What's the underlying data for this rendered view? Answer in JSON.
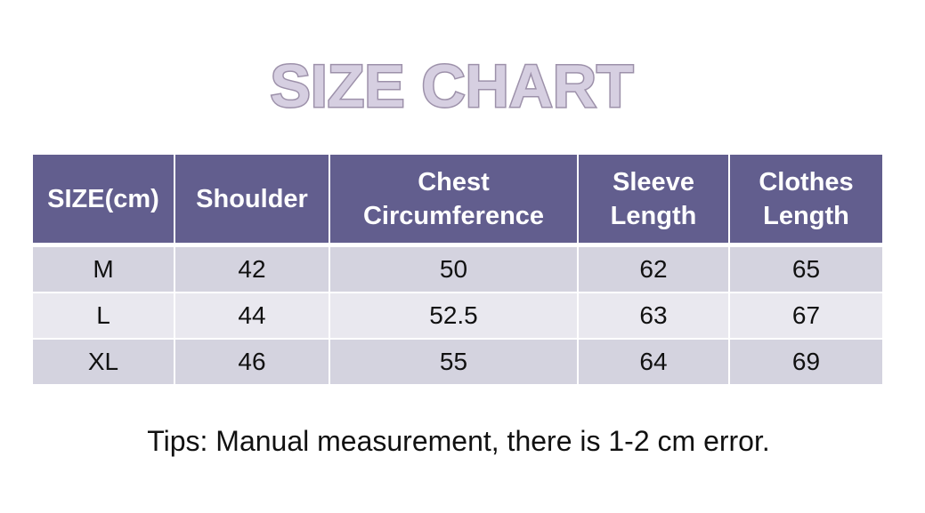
{
  "title": "SIZE CHART",
  "table": {
    "headers": [
      [
        "SIZE(cm)"
      ],
      [
        "Shoulder"
      ],
      [
        "Chest",
        "Circumference"
      ],
      [
        "Sleeve",
        "Length"
      ],
      [
        "Clothes",
        "Length"
      ]
    ],
    "rows": [
      [
        "M",
        "42",
        "50",
        "62",
        "65"
      ],
      [
        "L",
        "44",
        "52.5",
        "63",
        "67"
      ],
      [
        "XL",
        "46",
        "55",
        "64",
        "69"
      ]
    ]
  },
  "colors": {
    "header_bg": "#625e8e",
    "row_odd": "#d4d3df",
    "row_even": "#e9e8ef",
    "title_fill": "#d6cfe1",
    "title_stroke": "#9d91aa"
  },
  "tips": "Tips: Manual measurement, there is 1-2 cm error."
}
